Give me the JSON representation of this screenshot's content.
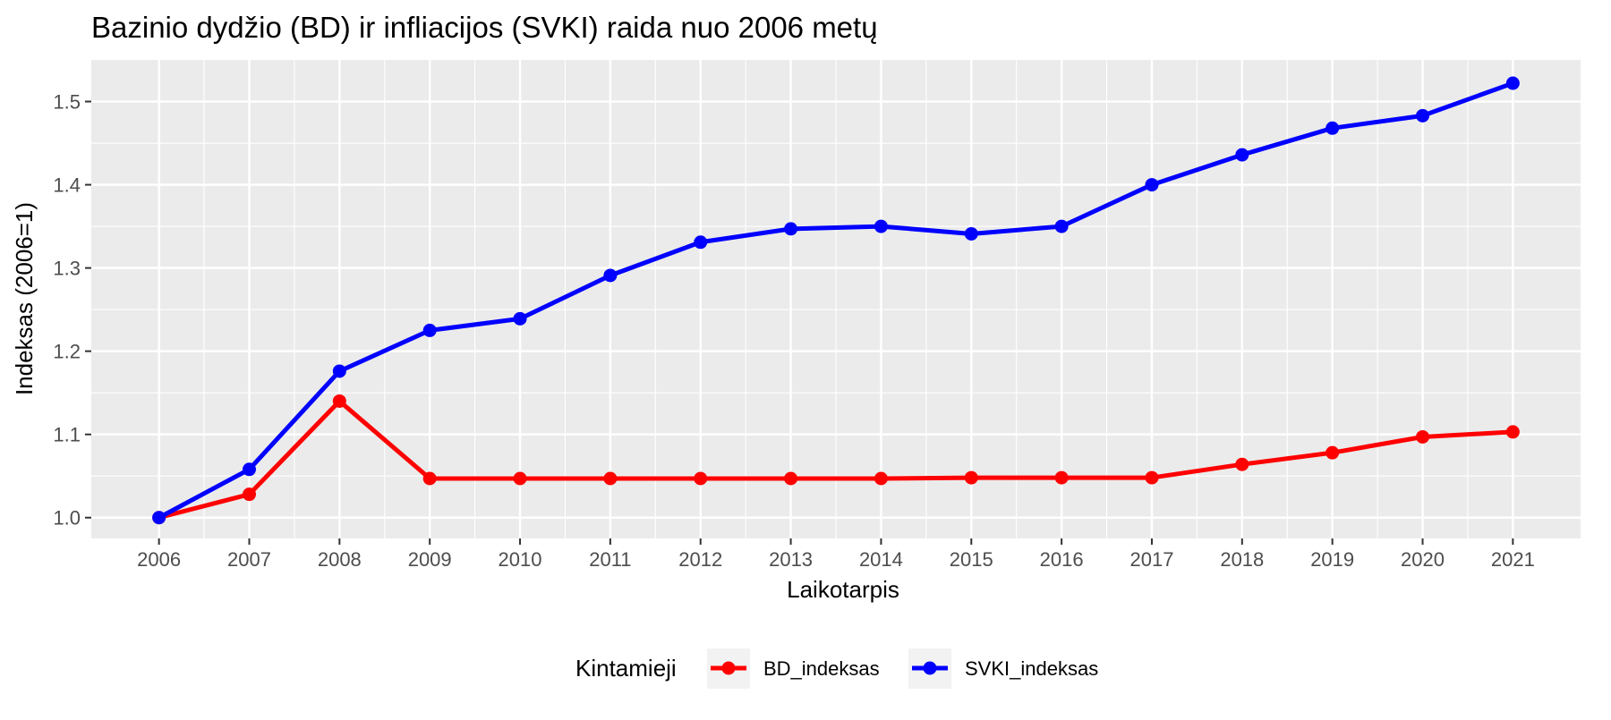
{
  "chart_data": {
    "type": "line",
    "title": "Bazinio dydžio (BD) ir infliacijos (SVKI) raida nuo 2006 metų",
    "xlabel": "Laikotarpis",
    "ylabel": "Indeksas (2006=1)",
    "x": [
      2006,
      2007,
      2008,
      2009,
      2010,
      2011,
      2012,
      2013,
      2014,
      2015,
      2016,
      2017,
      2018,
      2019,
      2020,
      2021
    ],
    "xlim": [
      2005.25,
      2021.75
    ],
    "ylim": [
      0.975,
      1.55
    ],
    "yticks": [
      1.0,
      1.1,
      1.2,
      1.3,
      1.4,
      1.5
    ],
    "ytick_labels": [
      "1.0",
      "1.1",
      "1.2",
      "1.3",
      "1.4",
      "1.5"
    ],
    "xtick_labels": [
      "2006",
      "2007",
      "2008",
      "2009",
      "2010",
      "2011",
      "2012",
      "2013",
      "2014",
      "2015",
      "2016",
      "2017",
      "2018",
      "2019",
      "2020",
      "2021"
    ],
    "grid": true,
    "legend": {
      "title": "Kintamieji",
      "position": "bottom"
    },
    "series": [
      {
        "name": "BD_indeksas",
        "color": "#ff0000",
        "values": [
          1.0,
          1.028,
          1.14,
          1.047,
          1.047,
          1.047,
          1.047,
          1.047,
          1.047,
          1.048,
          1.048,
          1.048,
          1.064,
          1.078,
          1.097,
          1.103
        ]
      },
      {
        "name": "SVKI_indeksas",
        "color": "#0000ff",
        "values": [
          1.0,
          1.058,
          1.176,
          1.225,
          1.239,
          1.291,
          1.331,
          1.347,
          1.35,
          1.341,
          1.35,
          1.4,
          1.436,
          1.468,
          1.483,
          1.522
        ]
      }
    ]
  }
}
